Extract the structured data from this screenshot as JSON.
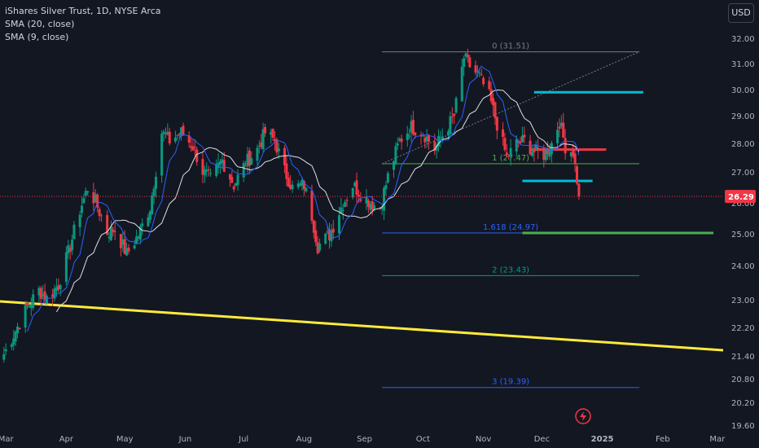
{
  "legend": {
    "title": "iShares Silver Trust, 1D, NYSE Arca",
    "sma20": "SMA (20, close)",
    "sma9": "SMA (9, close)"
  },
  "currency": "USD",
  "colors": {
    "background": "#131722",
    "up": "#089981",
    "down": "#f23645",
    "sma20": "#e0e0e0",
    "sma9": "#2962ff",
    "price_badge": "#f23645",
    "yellow_line": "#ffeb3b",
    "cyan_line": "#00bcd4",
    "green_line": "#4caf50",
    "red_line": "#f23645"
  },
  "chart_data": {
    "type": "candlestick",
    "current_price": "26.29",
    "ylim": [
      19.6,
      32.4
    ],
    "y_ticks": [
      "32.00",
      "31.00",
      "30.00",
      "29.00",
      "28.00",
      "27.00",
      "26.00",
      "25.00",
      "24.00",
      "23.00",
      "22.20",
      "21.40",
      "20.80",
      "20.20",
      "19.60"
    ],
    "x_ticks": [
      {
        "label": "Mar",
        "date": "2024-03-01"
      },
      {
        "label": "Apr",
        "date": "2024-04-01"
      },
      {
        "label": "May",
        "date": "2024-05-01"
      },
      {
        "label": "Jun",
        "date": "2024-06-01"
      },
      {
        "label": "Jul",
        "date": "2024-07-01"
      },
      {
        "label": "Aug",
        "date": "2024-08-01"
      },
      {
        "label": "Sep",
        "date": "2024-09-01"
      },
      {
        "label": "Oct",
        "date": "2024-10-01"
      },
      {
        "label": "Nov",
        "date": "2024-11-01"
      },
      {
        "label": "Dec",
        "date": "2024-12-01"
      },
      {
        "label": "2025",
        "date": "2025-01-01"
      },
      {
        "label": "Feb",
        "date": "2025-02-01"
      },
      {
        "label": "Mar",
        "date": "2025-03-01"
      }
    ],
    "price_path": [
      [
        "2024-02-29",
        20.6
      ],
      [
        "2024-03-05",
        21.3
      ],
      [
        "2024-03-12",
        22.3
      ],
      [
        "2024-03-18",
        22.9
      ],
      [
        "2024-03-22",
        22.6
      ],
      [
        "2024-03-28",
        23.1
      ],
      [
        "2024-04-03",
        24.5
      ],
      [
        "2024-04-08",
        25.8
      ],
      [
        "2024-04-12",
        26.6
      ],
      [
        "2024-04-16",
        26.1
      ],
      [
        "2024-04-22",
        25.0
      ],
      [
        "2024-04-26",
        25.1
      ],
      [
        "2024-05-02",
        24.2
      ],
      [
        "2024-05-08",
        24.9
      ],
      [
        "2024-05-14",
        25.9
      ],
      [
        "2024-05-20",
        28.6
      ],
      [
        "2024-05-24",
        28.3
      ],
      [
        "2024-05-30",
        28.6
      ],
      [
        "2024-06-05",
        28.1
      ],
      [
        "2024-06-10",
        27.2
      ],
      [
        "2024-06-14",
        26.9
      ],
      [
        "2024-06-20",
        27.6
      ],
      [
        "2024-06-26",
        26.7
      ],
      [
        "2024-07-02",
        27.5
      ],
      [
        "2024-07-08",
        28.0
      ],
      [
        "2024-07-12",
        28.6
      ],
      [
        "2024-07-17",
        28.3
      ],
      [
        "2024-07-22",
        27.2
      ],
      [
        "2024-07-26",
        26.6
      ],
      [
        "2024-08-01",
        26.7
      ],
      [
        "2024-08-05",
        25.6
      ],
      [
        "2024-08-08",
        24.5
      ],
      [
        "2024-08-14",
        24.9
      ],
      [
        "2024-08-20",
        25.9
      ],
      [
        "2024-08-26",
        26.7
      ],
      [
        "2024-08-30",
        26.4
      ],
      [
        "2024-09-05",
        26.0
      ],
      [
        "2024-09-09",
        25.9
      ],
      [
        "2024-09-13",
        27.0
      ],
      [
        "2024-09-19",
        28.3
      ],
      [
        "2024-09-25",
        28.8
      ],
      [
        "2024-10-01",
        28.6
      ],
      [
        "2024-10-07",
        28.0
      ],
      [
        "2024-10-11",
        28.5
      ],
      [
        "2024-10-17",
        29.2
      ],
      [
        "2024-10-22",
        31.3
      ],
      [
        "2024-10-25",
        31.0
      ],
      [
        "2024-10-30",
        30.6
      ],
      [
        "2024-11-04",
        29.9
      ],
      [
        "2024-11-08",
        28.9
      ],
      [
        "2024-11-13",
        27.7
      ],
      [
        "2024-11-18",
        28.2
      ],
      [
        "2024-11-22",
        28.3
      ],
      [
        "2024-11-27",
        27.9
      ],
      [
        "2024-12-02",
        27.8
      ],
      [
        "2024-12-06",
        28.2
      ],
      [
        "2024-12-10",
        29.0
      ],
      [
        "2024-12-13",
        28.1
      ],
      [
        "2024-12-17",
        27.9
      ],
      [
        "2024-12-19",
        26.9
      ],
      [
        "2024-12-20",
        26.29
      ]
    ],
    "fib_levels": [
      {
        "label": "0 (31.51)",
        "value": 31.51,
        "color": "#787b86"
      },
      {
        "label": "1 (27.47)",
        "value": 27.47,
        "color": "#4caf50"
      },
      {
        "label": "1.618 (24.97)",
        "value": 24.97,
        "color": "#2962ff"
      },
      {
        "label": "2 (23.43)",
        "value": 23.43,
        "color": "#089981"
      },
      {
        "label": "3 (19.39)",
        "value": 19.39,
        "color": "#2962ff"
      }
    ],
    "fib_range": {
      "start": "2024-09-10",
      "end": "2025-01-20"
    },
    "trend_line_dotted": {
      "start": [
        "2024-09-10",
        27.47
      ],
      "end": [
        "2025-01-20",
        31.51
      ]
    },
    "yellow_trend": {
      "start": [
        "2024-02-27",
        22.9
      ],
      "end": [
        "2025-03-01",
        21.55
      ]
    },
    "horizontal_lines": [
      {
        "color": "#00bcd4",
        "value": 30.05,
        "start": "2024-11-27",
        "end": "2025-01-22"
      },
      {
        "color": "#f23645",
        "value": 27.98,
        "start": "2024-11-25",
        "end": "2025-01-03"
      },
      {
        "color": "#00bcd4",
        "value": 26.85,
        "start": "2024-11-21",
        "end": "2024-12-27"
      },
      {
        "color": "#4caf50",
        "value": 24.97,
        "start": "2024-11-21",
        "end": "2025-02-27"
      }
    ]
  }
}
